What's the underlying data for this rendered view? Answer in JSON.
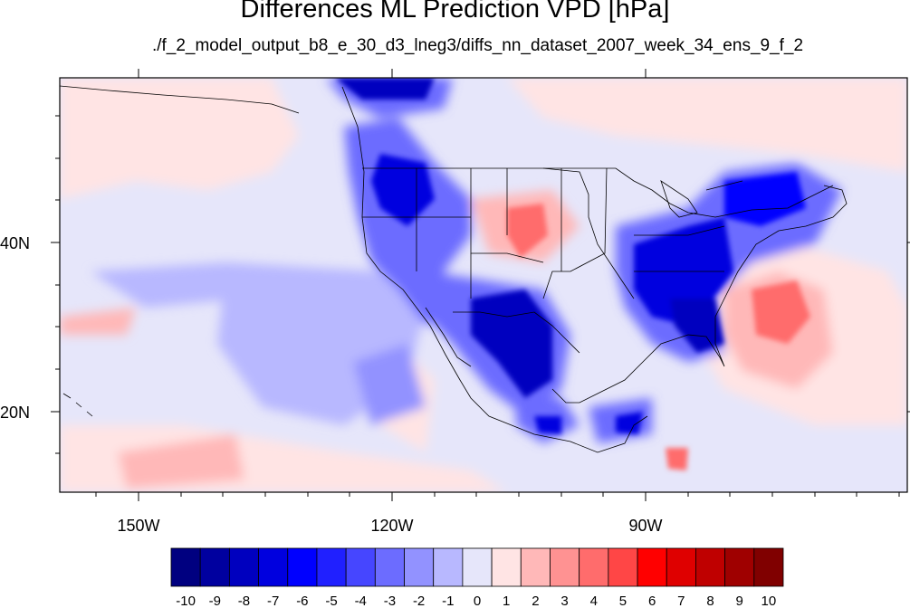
{
  "title": "Differences ML Prediction VPD [hPa]",
  "subtitle": "./f_2_model_output_b8_e_30_d3_lneg3/diffs_nn_dataset_2007_week_34_ens_9_f_2",
  "axes": {
    "x_ticks": [
      "150W",
      "120W",
      "90W"
    ],
    "y_ticks": [
      "40N",
      "20N"
    ]
  },
  "colorbar": {
    "labels": [
      "-10",
      "-9",
      "-8",
      "-7",
      "-6",
      "-5",
      "-4",
      "-3",
      "-2",
      "-1",
      "0",
      "1",
      "2",
      "3",
      "4",
      "5",
      "6",
      "7",
      "8",
      "9",
      "10"
    ],
    "colors": [
      "#000080",
      "#00009f",
      "#0000bf",
      "#0000df",
      "#0000ff",
      "#2020ff",
      "#4646ff",
      "#6c6cff",
      "#9292ff",
      "#b8b8ff",
      "#e6e6fa",
      "#ffe4e4",
      "#ffb8b8",
      "#ff9292",
      "#ff6c6c",
      "#ff4646",
      "#ff0000",
      "#df0000",
      "#bf0000",
      "#9f0000",
      "#800000"
    ]
  }
}
